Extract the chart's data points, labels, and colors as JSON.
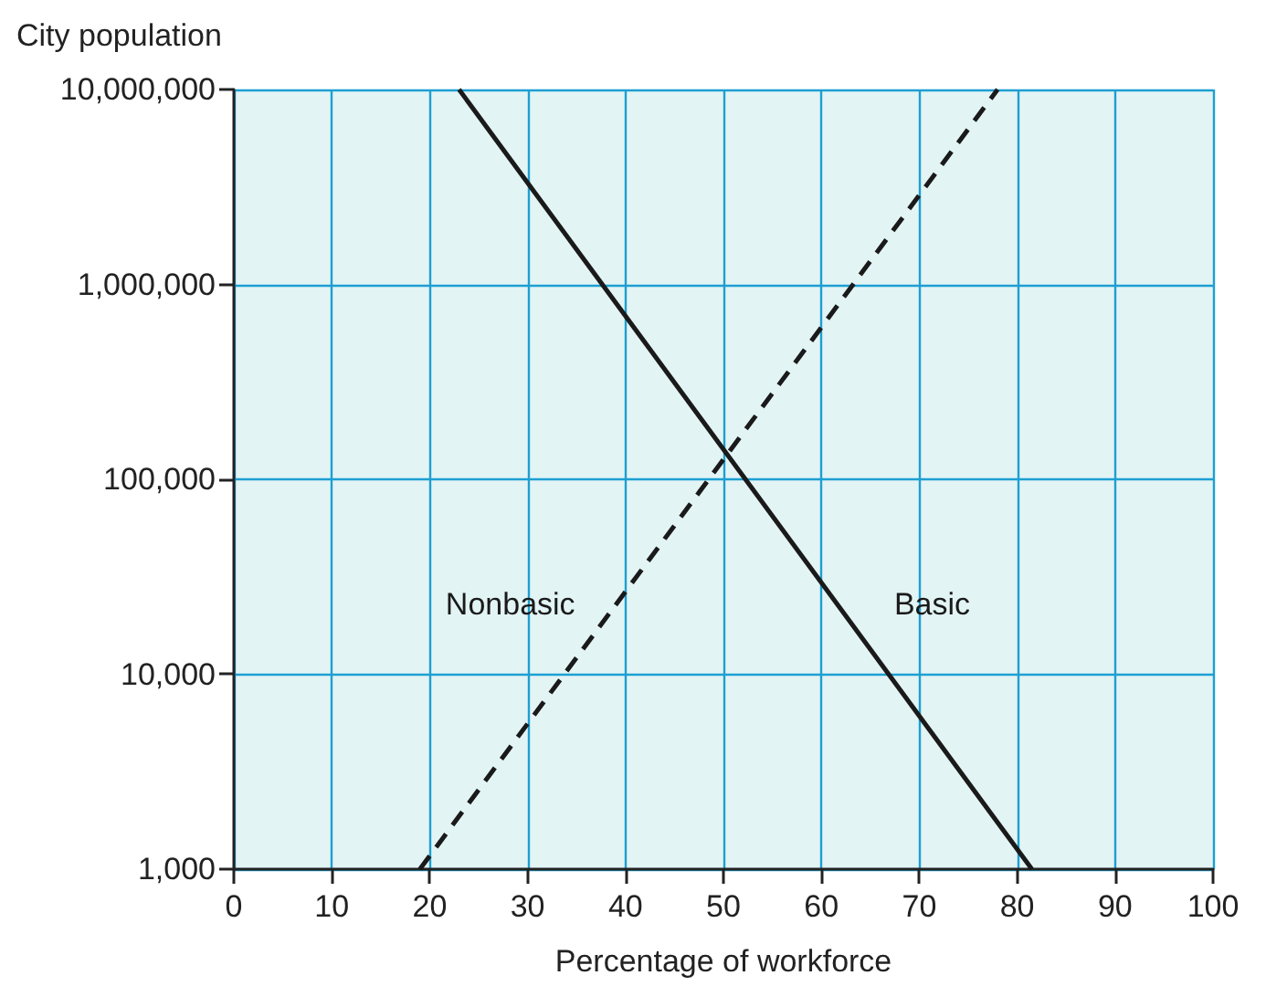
{
  "chart_data": {
    "type": "line",
    "xlabel": "Percentage of workforce",
    "ylabel": "City population",
    "series": [
      {
        "name": "Nonbasic",
        "color": "#1a1a1a",
        "line_style": "dashed",
        "x": [
          19,
          78
        ],
        "values": [
          1000,
          10000000
        ]
      },
      {
        "name": "Basic",
        "color": "#1a1a1a",
        "line_style": "solid",
        "x": [
          23,
          81.5
        ],
        "values": [
          10000000,
          1000
        ]
      }
    ],
    "log": "y",
    "xlim": [
      0,
      100
    ],
    "xticks": [
      0,
      10,
      20,
      30,
      40,
      50,
      60,
      70,
      80,
      90,
      100
    ],
    "ylim": [
      1000,
      10000000
    ],
    "yticks": [
      {
        "value": 1000,
        "label": "1,000"
      },
      {
        "value": 10000,
        "label": "10,000"
      },
      {
        "value": 100000,
        "label": "100,000"
      },
      {
        "value": 1000000,
        "label": "1,000,000"
      },
      {
        "value": 10000000,
        "label": "10,000,000"
      }
    ],
    "grid": true,
    "marker": "none",
    "legend": false
  }
}
